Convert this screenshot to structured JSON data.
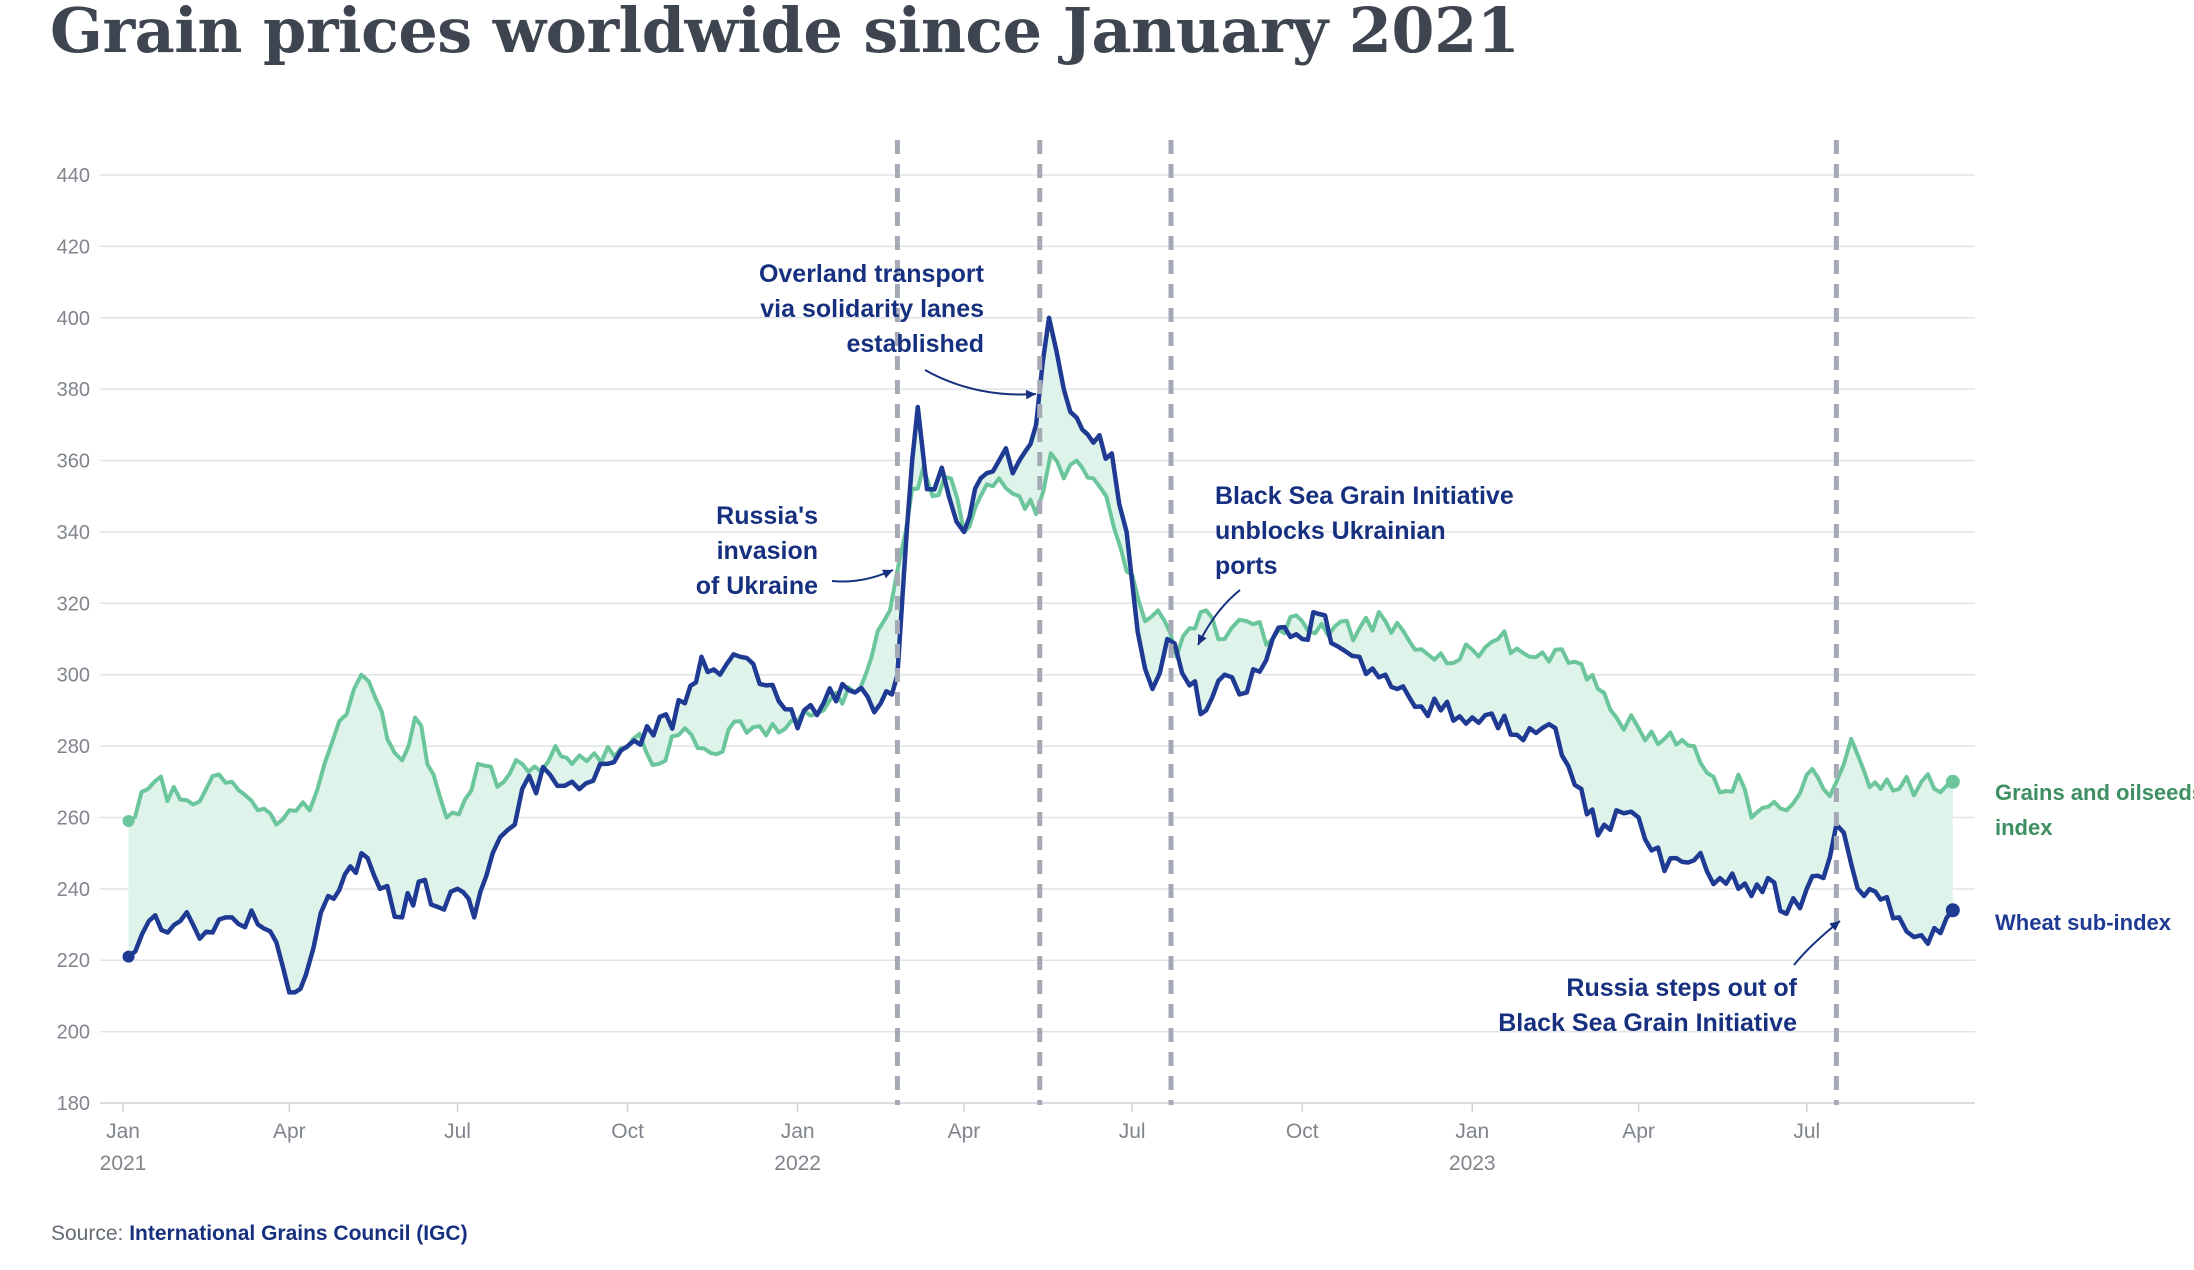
{
  "colors": {
    "wheat": "#1f3a93",
    "grains": "#6cc69b",
    "fill": "#def4ea",
    "vline": "#a4a9b5",
    "grid": "#e1e3e7",
    "axis_text": "#7f848d",
    "annotation": "#16307f",
    "grains_label": "#3d8f62"
  },
  "chart_data": {
    "type": "line",
    "title": "Grain prices worldwide since January 2021",
    "ylim": [
      180,
      440
    ],
    "yticks": [
      180,
      200,
      220,
      240,
      260,
      280,
      300,
      320,
      340,
      360,
      380,
      400,
      420,
      440
    ],
    "xlim": [
      "2021-01-01",
      "2023-09-30"
    ],
    "xticks": [
      {
        "date": "2021-01-01",
        "label": "Jan",
        "year": "2021"
      },
      {
        "date": "2021-04-01",
        "label": "Apr",
        "year": ""
      },
      {
        "date": "2021-07-01",
        "label": "Jul",
        "year": ""
      },
      {
        "date": "2021-10-01",
        "label": "Oct",
        "year": ""
      },
      {
        "date": "2022-01-01",
        "label": "Jan",
        "year": "2022"
      },
      {
        "date": "2022-04-01",
        "label": "Apr",
        "year": ""
      },
      {
        "date": "2022-07-01",
        "label": "Jul",
        "year": ""
      },
      {
        "date": "2022-10-01",
        "label": "Oct",
        "year": ""
      },
      {
        "date": "2023-01-01",
        "label": "Jan",
        "year": "2023"
      },
      {
        "date": "2023-04-01",
        "label": "Apr",
        "year": ""
      },
      {
        "date": "2023-07-01",
        "label": "Jul",
        "year": ""
      }
    ],
    "grid": true,
    "series": [
      {
        "name": "Grains and oilseeds index",
        "label_lines": [
          "Grains and oilseeds",
          "index"
        ],
        "points": [
          [
            "2021-01-04",
            259
          ],
          [
            "2021-01-18",
            270
          ],
          [
            "2021-02-01",
            265
          ],
          [
            "2021-02-15",
            268
          ],
          [
            "2021-03-01",
            270
          ],
          [
            "2021-03-15",
            262
          ],
          [
            "2021-03-25",
            258
          ],
          [
            "2021-04-01",
            262
          ],
          [
            "2021-04-12",
            262
          ],
          [
            "2021-04-20",
            275
          ],
          [
            "2021-04-28",
            287
          ],
          [
            "2021-05-06",
            296
          ],
          [
            "2021-05-10",
            300
          ],
          [
            "2021-05-18",
            293
          ],
          [
            "2021-05-24",
            282
          ],
          [
            "2021-06-01",
            276
          ],
          [
            "2021-06-08",
            288
          ],
          [
            "2021-06-18",
            272
          ],
          [
            "2021-06-25",
            260
          ],
          [
            "2021-07-05",
            265
          ],
          [
            "2021-07-12",
            275
          ],
          [
            "2021-07-26",
            270
          ],
          [
            "2021-08-05",
            275
          ],
          [
            "2021-08-15",
            273
          ],
          [
            "2021-08-23",
            280
          ],
          [
            "2021-09-01",
            275
          ],
          [
            "2021-09-13",
            278
          ],
          [
            "2021-09-24",
            277
          ],
          [
            "2021-10-04",
            282
          ],
          [
            "2021-10-18",
            275
          ],
          [
            "2021-11-01",
            285
          ],
          [
            "2021-11-15",
            278
          ],
          [
            "2021-12-01",
            287
          ],
          [
            "2021-12-15",
            283
          ],
          [
            "2022-01-01",
            287
          ],
          [
            "2022-01-15",
            290
          ],
          [
            "2022-02-01",
            295
          ],
          [
            "2022-02-10",
            305
          ],
          [
            "2022-02-20",
            318
          ],
          [
            "2022-02-25",
            332
          ],
          [
            "2022-03-04",
            352
          ],
          [
            "2022-03-10",
            358
          ],
          [
            "2022-03-15",
            350
          ],
          [
            "2022-03-25",
            355
          ],
          [
            "2022-04-01",
            340
          ],
          [
            "2022-04-10",
            350
          ],
          [
            "2022-04-20",
            355
          ],
          [
            "2022-05-01",
            350
          ],
          [
            "2022-05-10",
            345
          ],
          [
            "2022-05-18",
            362
          ],
          [
            "2022-05-25",
            355
          ],
          [
            "2022-06-01",
            360
          ],
          [
            "2022-06-10",
            355
          ],
          [
            "2022-06-17",
            350
          ],
          [
            "2022-06-25",
            335
          ],
          [
            "2022-07-01",
            328
          ],
          [
            "2022-07-08",
            315
          ],
          [
            "2022-07-15",
            318
          ],
          [
            "2022-07-25",
            305
          ],
          [
            "2022-08-01",
            313
          ],
          [
            "2022-08-10",
            318
          ],
          [
            "2022-08-20",
            310
          ],
          [
            "2022-09-01",
            315
          ],
          [
            "2022-09-15",
            310
          ],
          [
            "2022-10-01",
            315
          ],
          [
            "2022-10-15",
            311
          ],
          [
            "2022-11-01",
            313
          ],
          [
            "2022-11-15",
            315
          ],
          [
            "2022-12-01",
            307
          ],
          [
            "2022-12-15",
            306
          ],
          [
            "2023-01-01",
            307
          ],
          [
            "2023-01-15",
            310
          ],
          [
            "2023-02-01",
            305
          ],
          [
            "2023-02-15",
            307
          ],
          [
            "2023-03-01",
            303
          ],
          [
            "2023-03-10",
            296
          ],
          [
            "2023-03-20",
            288
          ],
          [
            "2023-04-01",
            285
          ],
          [
            "2023-04-15",
            282
          ],
          [
            "2023-05-01",
            280
          ],
          [
            "2023-05-15",
            267
          ],
          [
            "2023-05-25",
            272
          ],
          [
            "2023-06-01",
            260
          ],
          [
            "2023-06-10",
            263
          ],
          [
            "2023-06-20",
            262
          ],
          [
            "2023-07-01",
            272
          ],
          [
            "2023-07-10",
            268
          ],
          [
            "2023-07-17",
            270
          ],
          [
            "2023-07-25",
            282
          ],
          [
            "2023-08-01",
            273
          ],
          [
            "2023-08-10",
            268
          ],
          [
            "2023-08-20",
            268
          ],
          [
            "2023-09-01",
            270
          ],
          [
            "2023-09-08",
            268
          ],
          [
            "2023-09-18",
            270
          ]
        ]
      },
      {
        "name": "Wheat sub-index",
        "label_lines": [
          "Wheat sub-index"
        ],
        "points": [
          [
            "2021-01-04",
            221
          ],
          [
            "2021-01-15",
            231
          ],
          [
            "2021-02-01",
            231
          ],
          [
            "2021-02-15",
            228
          ],
          [
            "2021-03-01",
            232
          ],
          [
            "2021-03-15",
            230
          ],
          [
            "2021-03-25",
            225
          ],
          [
            "2021-04-01",
            211
          ],
          [
            "2021-04-10",
            216
          ],
          [
            "2021-04-22",
            238
          ],
          [
            "2021-05-01",
            244
          ],
          [
            "2021-05-10",
            250
          ],
          [
            "2021-05-20",
            240
          ],
          [
            "2021-06-01",
            232
          ],
          [
            "2021-06-10",
            242
          ],
          [
            "2021-06-20",
            235
          ],
          [
            "2021-07-01",
            240
          ],
          [
            "2021-07-10",
            232
          ],
          [
            "2021-07-20",
            250
          ],
          [
            "2021-08-01",
            258
          ],
          [
            "2021-08-05",
            268
          ],
          [
            "2021-08-20",
            272
          ],
          [
            "2021-09-01",
            270
          ],
          [
            "2021-09-20",
            275
          ],
          [
            "2021-10-01",
            280
          ],
          [
            "2021-10-15",
            283
          ],
          [
            "2021-11-01",
            292
          ],
          [
            "2021-11-10",
            305
          ],
          [
            "2021-11-20",
            300
          ],
          [
            "2021-12-01",
            305
          ],
          [
            "2021-12-15",
            297
          ],
          [
            "2022-01-01",
            285
          ],
          [
            "2022-01-15",
            292
          ],
          [
            "2022-02-01",
            295
          ],
          [
            "2022-02-15",
            292
          ],
          [
            "2022-02-24",
            300
          ],
          [
            "2022-03-01",
            340
          ],
          [
            "2022-03-07",
            375
          ],
          [
            "2022-03-12",
            352
          ],
          [
            "2022-03-20",
            358
          ],
          [
            "2022-04-01",
            340
          ],
          [
            "2022-04-10",
            355
          ],
          [
            "2022-04-20",
            360
          ],
          [
            "2022-05-01",
            360
          ],
          [
            "2022-05-10",
            370
          ],
          [
            "2022-05-17",
            400
          ],
          [
            "2022-05-25",
            380
          ],
          [
            "2022-06-01",
            372
          ],
          [
            "2022-06-10",
            365
          ],
          [
            "2022-06-20",
            362
          ],
          [
            "2022-06-28",
            340
          ],
          [
            "2022-07-04",
            312
          ],
          [
            "2022-07-12",
            296
          ],
          [
            "2022-07-20",
            310
          ],
          [
            "2022-08-01",
            297
          ],
          [
            "2022-08-10",
            290
          ],
          [
            "2022-08-20",
            300
          ],
          [
            "2022-09-01",
            295
          ],
          [
            "2022-09-15",
            310
          ],
          [
            "2022-10-01",
            310
          ],
          [
            "2022-10-10",
            317
          ],
          [
            "2022-10-20",
            308
          ],
          [
            "2022-11-01",
            305
          ],
          [
            "2022-11-15",
            300
          ],
          [
            "2022-12-01",
            291
          ],
          [
            "2022-12-15",
            290
          ],
          [
            "2023-01-01",
            288
          ],
          [
            "2023-01-15",
            285
          ],
          [
            "2023-02-01",
            285
          ],
          [
            "2023-02-15",
            285
          ],
          [
            "2023-03-01",
            268
          ],
          [
            "2023-03-10",
            255
          ],
          [
            "2023-03-20",
            262
          ],
          [
            "2023-04-01",
            260
          ],
          [
            "2023-04-15",
            245
          ],
          [
            "2023-05-01",
            248
          ],
          [
            "2023-05-15",
            243
          ],
          [
            "2023-05-25",
            240
          ],
          [
            "2023-06-01",
            238
          ],
          [
            "2023-06-10",
            243
          ],
          [
            "2023-06-20",
            233
          ],
          [
            "2023-07-01",
            240
          ],
          [
            "2023-07-10",
            243
          ],
          [
            "2023-07-17",
            258
          ],
          [
            "2023-07-25",
            247
          ],
          [
            "2023-08-01",
            238
          ],
          [
            "2023-08-10",
            237
          ],
          [
            "2023-08-20",
            232
          ],
          [
            "2023-09-01",
            227
          ],
          [
            "2023-09-08",
            229
          ],
          [
            "2023-09-18",
            234
          ]
        ]
      }
    ],
    "events": [
      {
        "date": "2022-02-24",
        "label_lines": [
          "Russia's",
          "invasion",
          "of Ukraine"
        ]
      },
      {
        "date": "2022-05-12",
        "label_lines": [
          "Overland transport",
          "via solidarity lanes",
          "established"
        ]
      },
      {
        "date": "2022-07-22",
        "label_lines": [
          "Black Sea Grain Initiative",
          "unblocks Ukrainian",
          "ports"
        ]
      },
      {
        "date": "2023-07-17",
        "label_lines": [
          "Russia steps out of",
          "Black Sea Grain Initiative"
        ]
      }
    ],
    "source_prefix": "Source:",
    "source_name": "International Grains Council (IGC)"
  }
}
